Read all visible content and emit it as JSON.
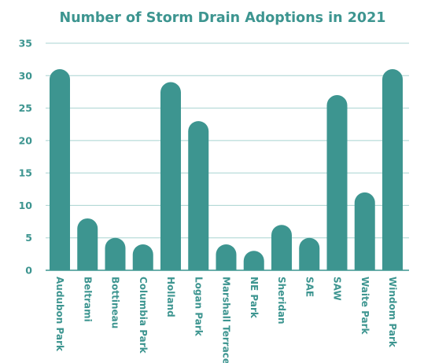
{
  "chart_data": {
    "type": "bar",
    "title": "Number of Storm Drain Adoptions in 2021",
    "xlabel": "",
    "ylabel": "",
    "categories": [
      "Audubon Park",
      "Beltrami",
      "Bottineau",
      "Columbia Park",
      "Holland",
      "Logan Park",
      "Marshall Terrace",
      "NE Park",
      "Sheridan",
      "SAE",
      "SAW",
      "Waite Park",
      "Windom Park"
    ],
    "values": [
      31,
      8,
      5,
      4,
      29,
      23,
      4,
      3,
      7,
      5,
      27,
      12,
      31
    ],
    "ylim": [
      0,
      35
    ],
    "yticks": [
      0,
      5,
      10,
      15,
      20,
      25,
      30,
      35
    ],
    "grid": true,
    "legend": "none"
  },
  "colors": {
    "bar": "#3d9590",
    "title": "#3d9590",
    "tick_text": "#3d9590",
    "gridline": "#a8d3d0",
    "axis_line": "#3d9590"
  }
}
